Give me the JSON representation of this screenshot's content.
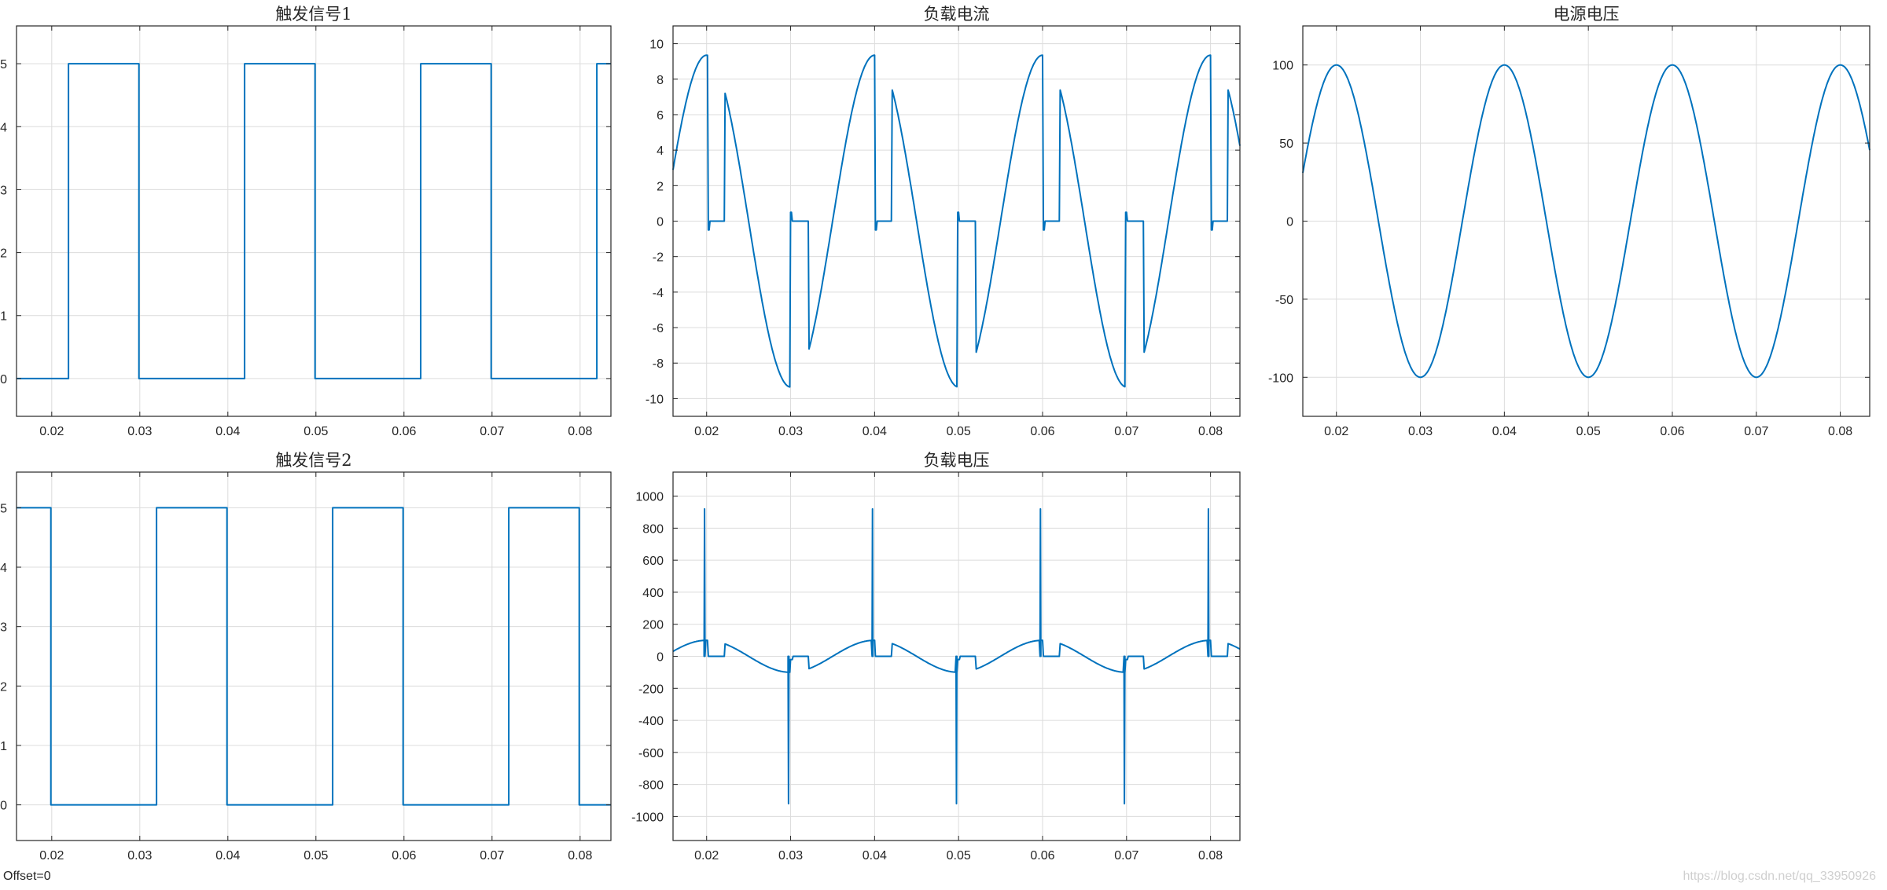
{
  "offset_label": "Offset=0",
  "watermark": "https://blog.csdn.net/qq_33950926",
  "colors": {
    "series": "#0072bd",
    "axes": "#262626",
    "grid": "#dcdcdc"
  },
  "chart_data": [
    {
      "id": "trigger1",
      "type": "line",
      "title": "触发信号1",
      "xlim": [
        0.016,
        0.0835
      ],
      "ylim": [
        -0.6,
        5.6
      ],
      "xticks": [
        0.02,
        0.03,
        0.04,
        0.05,
        0.06,
        0.07,
        0.08
      ],
      "yticks": [
        0,
        1,
        2,
        3,
        4,
        5
      ],
      "grid": true,
      "series": [
        {
          "kind": "pulse",
          "x": [
            0.016,
            0.0219,
            0.0219,
            0.0299,
            0.0299,
            0.0419,
            0.0419,
            0.0499,
            0.0499,
            0.0619,
            0.0619,
            0.0699,
            0.0699,
            0.0819,
            0.0819,
            0.0835
          ],
          "y": [
            0,
            0,
            5,
            5,
            0,
            0,
            5,
            5,
            0,
            0,
            5,
            5,
            0,
            0,
            5,
            5
          ]
        }
      ]
    },
    {
      "id": "load_current",
      "type": "line",
      "title": "负载电流",
      "xlim": [
        0.016,
        0.0835
      ],
      "ylim": [
        -11,
        11
      ],
      "xticks": [
        0.02,
        0.03,
        0.04,
        0.05,
        0.06,
        0.07,
        0.08
      ],
      "yticks": [
        -10,
        -8,
        -6,
        -4,
        -2,
        0,
        2,
        4,
        6,
        8,
        10
      ],
      "grid": true,
      "series": [
        {
          "kind": "load_current",
          "amplitude": 9.35,
          "period": 0.02,
          "phase_zero": 0.015,
          "spike": 0.5,
          "neg_spike": -0.5
        }
      ]
    },
    {
      "id": "source_voltage",
      "type": "line",
      "title": "电源电压",
      "xlim": [
        0.016,
        0.0835
      ],
      "ylim": [
        -125,
        125
      ],
      "xticks": [
        0.02,
        0.03,
        0.04,
        0.05,
        0.06,
        0.07,
        0.08
      ],
      "yticks": [
        -100,
        -50,
        0,
        50,
        100
      ],
      "grid": true,
      "series": [
        {
          "kind": "sine",
          "amplitude": 100,
          "period": 0.02,
          "phase_zero": 0.015
        }
      ]
    },
    {
      "id": "trigger2",
      "type": "line",
      "title": "触发信号2",
      "xlim": [
        0.016,
        0.0835
      ],
      "ylim": [
        -0.6,
        5.6
      ],
      "xticks": [
        0.02,
        0.03,
        0.04,
        0.05,
        0.06,
        0.07,
        0.08
      ],
      "yticks": [
        0,
        1,
        2,
        3,
        4,
        5
      ],
      "grid": true,
      "series": [
        {
          "kind": "pulse",
          "x": [
            0.016,
            0.0199,
            0.0199,
            0.0319,
            0.0319,
            0.0399,
            0.0399,
            0.0519,
            0.0519,
            0.0599,
            0.0599,
            0.0719,
            0.0719,
            0.0799,
            0.0799,
            0.0835
          ],
          "y": [
            5,
            5,
            0,
            0,
            5,
            5,
            0,
            0,
            5,
            5,
            0,
            0,
            5,
            5,
            0,
            0
          ]
        }
      ]
    },
    {
      "id": "load_voltage",
      "type": "line",
      "title": "负载电压",
      "xlim": [
        0.016,
        0.0835
      ],
      "ylim": [
        -1150,
        1150
      ],
      "xticks": [
        0.02,
        0.03,
        0.04,
        0.05,
        0.06,
        0.07,
        0.08
      ],
      "yticks": [
        -1000,
        -800,
        -600,
        -400,
        -200,
        0,
        200,
        400,
        600,
        800,
        1000
      ],
      "grid": true,
      "series": [
        {
          "kind": "load_voltage",
          "amplitude": 100,
          "period": 0.02,
          "phase_zero": 0.015,
          "spike_up": 920,
          "spike_down": -920
        }
      ]
    }
  ]
}
